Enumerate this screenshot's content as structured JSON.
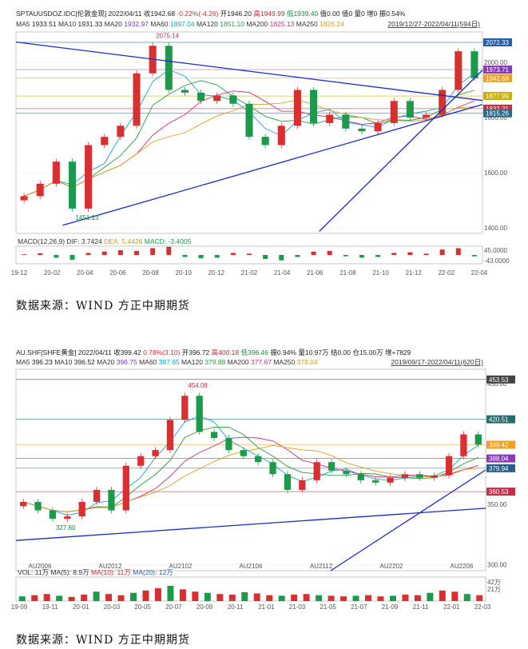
{
  "chart_data": [
    {
      "type": "candlestick",
      "header": {
        "symbol": "SPTAUUSDOZ.IDC[伦敦金现]",
        "date": "2022/04/11",
        "close": "收1942.68",
        "change": "-0.22%(-4.26)",
        "open": "开1946.20",
        "high": "高1949.99",
        "low": "低1939.40",
        "fields": "值0.00 值0 量0 增0 振0.54%",
        "range_label": "2019/12/27-2022/04/11(594日)",
        "ma": [
          {
            "name": "MA5",
            "value": "1933.51",
            "color": "#222222"
          },
          {
            "name": "MA10",
            "value": "1931.33",
            "color": "#222222"
          },
          {
            "name": "MA20",
            "value": "1932.97",
            "color": "#7a35c8"
          },
          {
            "name": "MA60",
            "value": "1897.04",
            "color": "#1aa0d8"
          },
          {
            "name": "MA120",
            "value": "1851.10",
            "color": "#2a9a3a"
          },
          {
            "name": "MA200",
            "value": "1825.13",
            "color": "#d03080"
          },
          {
            "name": "MA250",
            "value": "1826.24",
            "color": "#d8a020"
          }
        ]
      },
      "x_ticks": [
        "19-12",
        "20-02",
        "20-04",
        "20-06",
        "20-08",
        "20-10",
        "20-12",
        "21-02",
        "21-04",
        "21-06",
        "21-08",
        "21-10",
        "21-12",
        "22-02",
        "22-04"
      ],
      "y_ticks": [
        1400,
        1600,
        1800,
        2000
      ],
      "ylim": [
        1380,
        2110
      ],
      "price_tags": [
        {
          "text": "2072.33",
          "value": 2072.33,
          "color": "#2a5d9f"
        },
        {
          "text": "1973.71",
          "value": 1973.71,
          "color": "#8a3ab8"
        },
        {
          "text": "1942.68",
          "value": 1942.68,
          "color": "#f0a020"
        },
        {
          "text": "1877.99",
          "value": 1877.99,
          "color": "#c8b000"
        },
        {
          "text": "1832.21",
          "value": 1832.21,
          "color": "#c0304a"
        },
        {
          "text": "1815.26",
          "value": 1815.26,
          "color": "#2a6a8a"
        }
      ],
      "annotations": [
        {
          "text": "2075.14",
          "kind": "high",
          "color": "#c0304a"
        },
        {
          "text": "1451.13",
          "kind": "low",
          "color": "#1a7a3a"
        }
      ],
      "price_path": [
        {
          "x": "19-12",
          "y": 1515
        },
        {
          "x": "20-01",
          "y": 1560
        },
        {
          "x": "20-02",
          "y": 1640
        },
        {
          "x": "20-03",
          "y": 1470
        },
        {
          "x": "20-04",
          "y": 1700
        },
        {
          "x": "20-05",
          "y": 1730
        },
        {
          "x": "20-06",
          "y": 1770
        },
        {
          "x": "20-07",
          "y": 1960
        },
        {
          "x": "20-08",
          "y": 2060
        },
        {
          "x": "20-09",
          "y": 1900
        },
        {
          "x": "20-10",
          "y": 1890
        },
        {
          "x": "20-11",
          "y": 1860
        },
        {
          "x": "20-12",
          "y": 1880
        },
        {
          "x": "21-01",
          "y": 1850
        },
        {
          "x": "21-02",
          "y": 1730
        },
        {
          "x": "21-03",
          "y": 1700
        },
        {
          "x": "21-04",
          "y": 1770
        },
        {
          "x": "21-05",
          "y": 1900
        },
        {
          "x": "21-06",
          "y": 1780
        },
        {
          "x": "21-07",
          "y": 1810
        },
        {
          "x": "21-08",
          "y": 1760
        },
        {
          "x": "21-09",
          "y": 1750
        },
        {
          "x": "21-10",
          "y": 1780
        },
        {
          "x": "21-11",
          "y": 1860
        },
        {
          "x": "21-12",
          "y": 1800
        },
        {
          "x": "22-01",
          "y": 1810
        },
        {
          "x": "22-02",
          "y": 1900
        },
        {
          "x": "22-03",
          "y": 2040
        },
        {
          "x": "22-04",
          "y": 1942.68
        }
      ],
      "macd_label": "MACD(12,26,9)",
      "macd_dif": "DIF: 3.7424",
      "macd_dea": "DEA: 5.4426",
      "macd_macd": "MACD: -3.4005",
      "macd_ticks": [
        "45.0000",
        "-43.0000"
      ],
      "macd_values": [
        2,
        5,
        -8,
        -14,
        6,
        10,
        14,
        12,
        20,
        24,
        -6,
        -10,
        -8,
        6,
        4,
        -12,
        -16,
        -6,
        10,
        12,
        -4,
        -8,
        -6,
        6,
        8,
        4,
        16,
        20,
        -4
      ]
    },
    {
      "type": "candlestick",
      "header": {
        "symbol": "AU.SHF[SHFE黄金]",
        "date": "2022/04/11",
        "close": "收399.42",
        "change": "0.78%(3.10)",
        "open": "开396.72",
        "high": "高400.18",
        "low": "低396.46",
        "fields": "振0.94% 量10.97万 结0.00 仓15.00万 增+7829",
        "range_label": "2019/09/17-2022/04/11(620日)",
        "ma": [
          {
            "name": "MA5",
            "value": "396.23",
            "color": "#222222"
          },
          {
            "name": "MA10",
            "value": "396.52",
            "color": "#222222"
          },
          {
            "name": "MA20",
            "value": "396.75",
            "color": "#7a35c8"
          },
          {
            "name": "MA60",
            "value": "387.65",
            "color": "#1aa0d8"
          },
          {
            "name": "MA120",
            "value": "379.88",
            "color": "#2a9a3a"
          },
          {
            "name": "MA200",
            "value": "377.67",
            "color": "#d03080"
          },
          {
            "name": "MA250",
            "value": "378.04",
            "color": "#d8a020"
          }
        ]
      },
      "x_ticks": [
        "19-09",
        "19-11",
        "20-01",
        "20-03",
        "20-05",
        "20-07",
        "20-09",
        "20-11",
        "21-01",
        "21-03",
        "21-05",
        "21-07",
        "21-09",
        "21-11",
        "22-01",
        "22-03"
      ],
      "contract_labels": [
        "AU2006",
        "AU2012",
        "AU2102",
        "AU2106",
        "AU2112",
        "AU2202",
        "AU2206"
      ],
      "y_ticks": [
        300,
        350,
        400,
        450
      ],
      "ylim": [
        295,
        462
      ],
      "price_tags": [
        {
          "text": "453.53",
          "value": 453.53,
          "color": "#444444"
        },
        {
          "text": "420.51",
          "value": 420.51,
          "color": "#2a6a6a"
        },
        {
          "text": "399.42",
          "value": 399.42,
          "color": "#f0a020"
        },
        {
          "text": "388.04",
          "value": 388.04,
          "color": "#8a3ab8"
        },
        {
          "text": "379.94",
          "value": 379.94,
          "color": "#2a5d8a"
        },
        {
          "text": "360.53",
          "value": 360.53,
          "color": "#c0304a"
        }
      ],
      "annotations": [
        {
          "text": "454.08",
          "kind": "high",
          "color": "#c0304a"
        },
        {
          "text": "327.60",
          "kind": "low",
          "color": "#1a7a3a"
        }
      ],
      "price_path": [
        {
          "x": "19-09",
          "y": 352
        },
        {
          "x": "19-10",
          "y": 345
        },
        {
          "x": "19-11",
          "y": 338
        },
        {
          "x": "19-12",
          "y": 340
        },
        {
          "x": "20-01",
          "y": 352
        },
        {
          "x": "20-02",
          "y": 362
        },
        {
          "x": "20-03",
          "y": 345
        },
        {
          "x": "20-04",
          "y": 382
        },
        {
          "x": "20-05",
          "y": 390
        },
        {
          "x": "20-06",
          "y": 395
        },
        {
          "x": "20-07",
          "y": 420
        },
        {
          "x": "20-08",
          "y": 440
        },
        {
          "x": "20-09",
          "y": 410
        },
        {
          "x": "20-10",
          "y": 405
        },
        {
          "x": "20-11",
          "y": 395
        },
        {
          "x": "20-12",
          "y": 390
        },
        {
          "x": "21-01",
          "y": 385
        },
        {
          "x": "21-02",
          "y": 375
        },
        {
          "x": "21-03",
          "y": 362
        },
        {
          "x": "21-04",
          "y": 370
        },
        {
          "x": "21-05",
          "y": 385
        },
        {
          "x": "21-06",
          "y": 378
        },
        {
          "x": "21-07",
          "y": 375
        },
        {
          "x": "21-08",
          "y": 370
        },
        {
          "x": "21-09",
          "y": 368
        },
        {
          "x": "21-10",
          "y": 372
        },
        {
          "x": "21-11",
          "y": 375
        },
        {
          "x": "21-12",
          "y": 372
        },
        {
          "x": "22-01",
          "y": 374
        },
        {
          "x": "22-02",
          "y": 390
        },
        {
          "x": "22-03",
          "y": 408
        },
        {
          "x": "22-04",
          "y": 399.42
        }
      ],
      "vol_label": "VOL: 11万",
      "vol_ma5": "MA(5): 8.9万",
      "vol_ma10": "MA(10): 11万",
      "vol_ma20": "MA(20): 12万",
      "vol_ticks": [
        "42万",
        "21万"
      ],
      "vol_values": [
        8,
        10,
        12,
        9,
        7,
        11,
        16,
        12,
        10,
        14,
        18,
        22,
        26,
        20,
        16,
        14,
        12,
        11,
        15,
        13,
        10,
        9,
        11,
        12,
        10,
        9,
        8,
        9,
        10,
        8,
        9,
        11,
        10,
        14,
        18,
        16,
        12,
        10
      ]
    }
  ],
  "captions": {
    "caption_1": "数据来源：WIND  方正中期期货",
    "caption_2": "数据来源：WIND  方正中期期货"
  }
}
